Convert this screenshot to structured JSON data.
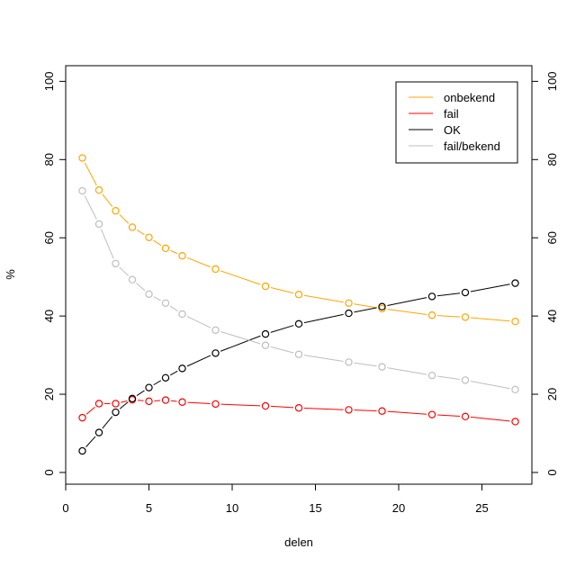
{
  "chart_data": {
    "type": "line",
    "title": "",
    "xlabel": "delen",
    "ylabel": "%",
    "xlim": [
      0,
      28
    ],
    "ylim": [
      -3,
      104
    ],
    "x_ticks": [
      0,
      5,
      10,
      15,
      20,
      25
    ],
    "y_ticks": [
      0,
      20,
      40,
      60,
      80,
      100
    ],
    "grid": false,
    "legend_position": "top-right",
    "x": [
      1,
      2,
      3,
      4,
      5,
      6,
      7,
      9,
      12,
      14,
      17,
      19,
      22,
      24,
      27
    ],
    "series": [
      {
        "name": "onbekend",
        "color": "#FFA500",
        "values": [
          80.4,
          72.2,
          66.9,
          62.7,
          60.1,
          57.3,
          55.4,
          52.0,
          47.6,
          45.5,
          43.3,
          41.9,
          40.2,
          39.7,
          38.6
        ]
      },
      {
        "name": "fail",
        "color": "#FF0000",
        "values": [
          14.0,
          17.6,
          17.6,
          18.6,
          18.2,
          18.5,
          18.0,
          17.5,
          17.0,
          16.5,
          16.0,
          15.7,
          14.8,
          14.3,
          13.0
        ]
      },
      {
        "name": "OK",
        "color": "#000000",
        "values": [
          5.5,
          10.2,
          15.4,
          18.9,
          21.7,
          24.2,
          26.6,
          30.5,
          35.4,
          38.0,
          40.7,
          42.4,
          45.0,
          46.0,
          48.4
        ]
      },
      {
        "name": "fail/bekend",
        "color": "#BEBEBE",
        "values": [
          72.0,
          63.5,
          53.4,
          49.3,
          45.6,
          43.3,
          40.5,
          36.4,
          32.5,
          30.2,
          28.2,
          27.0,
          24.8,
          23.6,
          21.2
        ]
      }
    ]
  }
}
